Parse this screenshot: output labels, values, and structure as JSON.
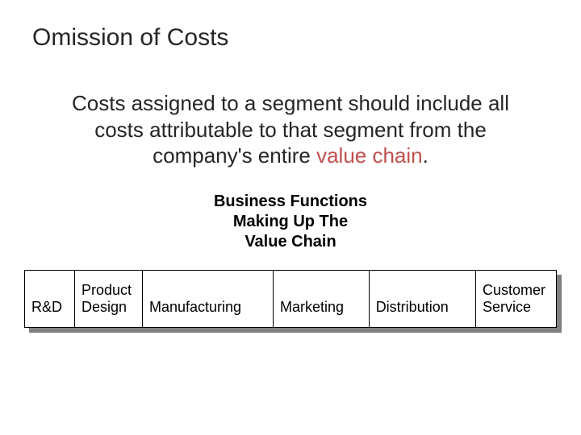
{
  "title": "Omission of Costs",
  "body": {
    "line1": "Costs assigned to a segment should include all",
    "line2": "costs attributable to that segment from the",
    "line3_prefix": "company's entire ",
    "line3_highlight": "value chain",
    "line3_suffix": "."
  },
  "subheading": {
    "line1": "Business Functions",
    "line2": "Making Up The",
    "line3": "Value Chain"
  },
  "table": {
    "cells": [
      "R&D",
      "Product Design",
      "Manufacturing",
      "Marketing",
      "Distribution",
      "Customer Service"
    ]
  },
  "colors": {
    "highlight": "#c0504d",
    "text": "#262626",
    "border": "#000000",
    "shadow": "#808080",
    "background": "#ffffff"
  },
  "typography": {
    "title_fontsize": 30,
    "body_fontsize": 26,
    "subheading_fontsize": 20,
    "table_fontsize": 18,
    "font_family": "Arial"
  }
}
